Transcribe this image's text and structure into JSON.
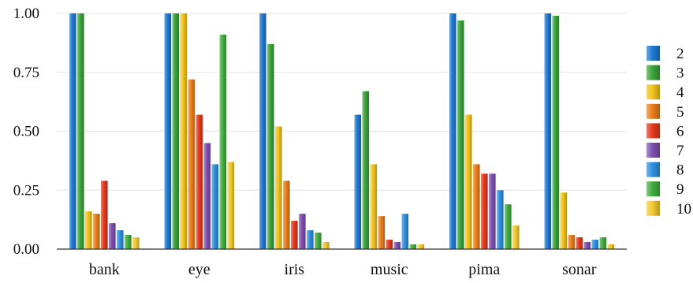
{
  "chart_data": {
    "type": "bar",
    "title": "",
    "xlabel": "",
    "ylabel": "",
    "ylim": [
      0,
      1
    ],
    "yticks": [
      "0.00",
      "0.25",
      "0.50",
      "0.75",
      "1.00"
    ],
    "grid": true,
    "legend_position": "right",
    "categories": [
      "bank",
      "eye",
      "iris",
      "music",
      "pima",
      "sonar"
    ],
    "series": [
      {
        "name": "2",
        "color": "#1f78d1",
        "values": [
          1.0,
          1.0,
          1.0,
          0.57,
          1.0,
          1.0
        ]
      },
      {
        "name": "3",
        "color": "#3aa33a",
        "values": [
          1.0,
          1.0,
          0.87,
          0.67,
          0.97,
          0.99
        ]
      },
      {
        "name": "4",
        "color": "#f2c21b",
        "values": [
          0.16,
          1.0,
          0.52,
          0.36,
          0.57,
          0.24
        ]
      },
      {
        "name": "5",
        "color": "#ea7d1a",
        "values": [
          0.15,
          0.72,
          0.29,
          0.14,
          0.36,
          0.06
        ]
      },
      {
        "name": "6",
        "color": "#e5391d",
        "values": [
          0.29,
          0.57,
          0.12,
          0.04,
          0.32,
          0.05
        ]
      },
      {
        "name": "7",
        "color": "#7e4fb0",
        "values": [
          0.11,
          0.45,
          0.15,
          0.03,
          0.32,
          0.03
        ]
      },
      {
        "name": "8",
        "color": "#2f8fe0",
        "values": [
          0.08,
          0.36,
          0.08,
          0.15,
          0.25,
          0.04
        ]
      },
      {
        "name": "9",
        "color": "#41ad3e",
        "values": [
          0.06,
          0.91,
          0.07,
          0.02,
          0.19,
          0.05
        ]
      },
      {
        "name": "10",
        "color": "#f3c830",
        "values": [
          0.05,
          0.37,
          0.03,
          0.02,
          0.1,
          0.02
        ]
      }
    ]
  }
}
